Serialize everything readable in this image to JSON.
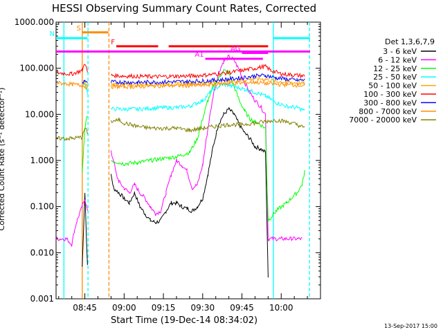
{
  "chart_data": {
    "type": "line",
    "title": "HESSI Observing Summary Count Rates, Corrected",
    "xlabel": "Start Time (19-Dec-14 08:34:02)",
    "ylabel": "Corrected Count Rate (s⁻¹ detector⁻¹)",
    "y_scale": "log",
    "ylim": [
      0.001,
      1000
    ],
    "y_ticks": [
      "1000.000",
      "100.000",
      "10.000",
      "1.000",
      "0.100",
      "0.010",
      "0.001"
    ],
    "x_ticks": [
      "08:45",
      "09:00",
      "09:15",
      "09:30",
      "09:45",
      "10:00"
    ],
    "x_tick_minutes": [
      525,
      540,
      555,
      570,
      585,
      600
    ],
    "xlim_minutes": [
      514,
      615
    ],
    "footer": "13-Sep-2017 15:00",
    "legend_title": "Det 1,3,6,7,9",
    "gap_minutes": [
      528,
      535
    ],
    "series": [
      {
        "name": "3 - 6 keV",
        "color": "#000000",
        "points": [
          [
            514,
            null
          ],
          [
            524,
            0.005
          ],
          [
            525,
            0.2
          ],
          [
            526,
            0.005
          ],
          [
            535,
            0.5
          ],
          [
            536,
            0.25
          ],
          [
            538,
            0.2
          ],
          [
            540,
            0.15
          ],
          [
            542,
            0.12
          ],
          [
            544,
            0.2
          ],
          [
            546,
            0.1
          ],
          [
            548,
            0.07
          ],
          [
            550,
            0.05
          ],
          [
            552,
            0.045
          ],
          [
            554,
            0.05
          ],
          [
            556,
            0.08
          ],
          [
            558,
            0.12
          ],
          [
            560,
            0.12
          ],
          [
            562,
            0.1
          ],
          [
            564,
            0.09
          ],
          [
            566,
            0.08
          ],
          [
            568,
            0.1
          ],
          [
            570,
            0.15
          ],
          [
            572,
            0.5
          ],
          [
            574,
            2
          ],
          [
            576,
            6
          ],
          [
            578,
            10
          ],
          [
            580,
            13
          ],
          [
            582,
            10
          ],
          [
            584,
            6
          ],
          [
            586,
            4
          ],
          [
            588,
            3
          ],
          [
            590,
            2
          ],
          [
            592,
            1.8
          ],
          [
            594,
            1.5
          ],
          [
            595,
            0.003
          ]
        ]
      },
      {
        "name": "6 - 12 keV",
        "color": "#ff00ff",
        "points": [
          [
            514,
            0.02
          ],
          [
            518,
            0.02
          ],
          [
            520,
            0.015
          ],
          [
            521,
            0.03
          ],
          [
            522,
            0.05
          ],
          [
            524,
            0.1
          ],
          [
            525,
            0.15
          ],
          [
            526,
            0.08
          ],
          [
            535,
            1.5
          ],
          [
            536,
            1
          ],
          [
            537,
            0.5
          ],
          [
            538,
            0.35
          ],
          [
            540,
            0.25
          ],
          [
            542,
            0.2
          ],
          [
            544,
            0.3
          ],
          [
            546,
            0.2
          ],
          [
            548,
            0.15
          ],
          [
            550,
            0.1
          ],
          [
            552,
            0.07
          ],
          [
            554,
            0.08
          ],
          [
            556,
            0.2
          ],
          [
            558,
            0.5
          ],
          [
            560,
            1
          ],
          [
            562,
            0.8
          ],
          [
            564,
            0.6
          ],
          [
            566,
            0.25
          ],
          [
            568,
            0.3
          ],
          [
            570,
            0.8
          ],
          [
            572,
            5
          ],
          [
            574,
            25
          ],
          [
            576,
            80
          ],
          [
            578,
            140
          ],
          [
            580,
            180
          ],
          [
            582,
            150
          ],
          [
            584,
            90
          ],
          [
            586,
            50
          ],
          [
            588,
            30
          ],
          [
            590,
            20
          ],
          [
            592,
            15
          ],
          [
            594,
            10
          ],
          [
            595,
            0.02
          ],
          [
            600,
            0.02
          ],
          [
            604,
            0.02
          ],
          [
            608,
            0.02
          ]
        ]
      },
      {
        "name": "12 - 25 keV",
        "color": "#00ff00",
        "points": [
          [
            514,
            null
          ],
          [
            524,
            0.5
          ],
          [
            525,
            5
          ],
          [
            526,
            10
          ],
          [
            535,
            1
          ],
          [
            538,
            0.9
          ],
          [
            540,
            0.85
          ],
          [
            545,
            0.9
          ],
          [
            550,
            1
          ],
          [
            555,
            1.1
          ],
          [
            560,
            1.2
          ],
          [
            565,
            1.5
          ],
          [
            568,
            3
          ],
          [
            570,
            8
          ],
          [
            572,
            20
          ],
          [
            574,
            40
          ],
          [
            576,
            60
          ],
          [
            578,
            90
          ],
          [
            580,
            80
          ],
          [
            582,
            40
          ],
          [
            584,
            20
          ],
          [
            586,
            12
          ],
          [
            588,
            8
          ],
          [
            590,
            7
          ],
          [
            592,
            6
          ],
          [
            594,
            5
          ],
          [
            595,
            0.05
          ],
          [
            598,
            0.08
          ],
          [
            602,
            0.12
          ],
          [
            606,
            0.2
          ],
          [
            608,
            0.3
          ],
          [
            609,
            0.6
          ]
        ]
      },
      {
        "name": "25 - 50 keV",
        "color": "#00ffff",
        "points": [
          [
            514,
            null
          ],
          [
            524,
            45
          ],
          [
            525,
            50
          ],
          [
            526,
            30
          ],
          [
            535,
            13
          ],
          [
            540,
            13
          ],
          [
            545,
            13
          ],
          [
            550,
            13.5
          ],
          [
            555,
            14
          ],
          [
            560,
            14
          ],
          [
            565,
            15
          ],
          [
            570,
            20
          ],
          [
            574,
            35
          ],
          [
            578,
            45
          ],
          [
            582,
            40
          ],
          [
            586,
            35
          ],
          [
            590,
            30
          ],
          [
            594,
            25
          ],
          [
            598,
            18
          ],
          [
            602,
            15
          ],
          [
            606,
            14
          ],
          [
            609,
            12
          ]
        ]
      },
      {
        "name": "50 - 100 keV",
        "color": "#ffa500",
        "points": [
          [
            514,
            null
          ],
          [
            524,
            42
          ],
          [
            525,
            48
          ],
          [
            526,
            40
          ],
          [
            535,
            45
          ],
          [
            540,
            44
          ],
          [
            545,
            44
          ],
          [
            550,
            45
          ],
          [
            555,
            45
          ],
          [
            560,
            46
          ],
          [
            565,
            46
          ],
          [
            570,
            47
          ],
          [
            575,
            50
          ],
          [
            580,
            52
          ],
          [
            585,
            55
          ],
          [
            590,
            60
          ],
          [
            594,
            58
          ],
          [
            598,
            52
          ],
          [
            602,
            50
          ],
          [
            606,
            48
          ],
          [
            609,
            46
          ]
        ]
      },
      {
        "name": "100 - 300 keV",
        "color": "#ff0000",
        "points": [
          [
            514,
            80
          ],
          [
            520,
            75
          ],
          [
            524,
            90
          ],
          [
            525,
            130
          ],
          [
            526,
            80
          ],
          [
            535,
            70
          ],
          [
            540,
            68
          ],
          [
            545,
            67
          ],
          [
            550,
            66
          ],
          [
            555,
            66
          ],
          [
            560,
            67
          ],
          [
            565,
            68
          ],
          [
            570,
            70
          ],
          [
            575,
            75
          ],
          [
            580,
            80
          ],
          [
            585,
            90
          ],
          [
            590,
            100
          ],
          [
            594,
            110
          ],
          [
            596,
            90
          ],
          [
            600,
            75
          ],
          [
            604,
            72
          ],
          [
            609,
            68
          ]
        ]
      },
      {
        "name": "300 - 800 keV",
        "color": "#0000ff",
        "points": [
          [
            514,
            null
          ],
          [
            524,
            48
          ],
          [
            525,
            55
          ],
          [
            526,
            45
          ],
          [
            535,
            50
          ],
          [
            540,
            50
          ],
          [
            545,
            49
          ],
          [
            550,
            50
          ],
          [
            555,
            50
          ],
          [
            560,
            51
          ],
          [
            565,
            52
          ],
          [
            570,
            53
          ],
          [
            575,
            55
          ],
          [
            580,
            58
          ],
          [
            585,
            62
          ],
          [
            590,
            68
          ],
          [
            594,
            70
          ],
          [
            598,
            62
          ],
          [
            602,
            58
          ],
          [
            606,
            55
          ],
          [
            609,
            55
          ]
        ]
      },
      {
        "name": "800 - 7000 keV",
        "color": "#ff8c00",
        "points": [
          [
            514,
            48
          ],
          [
            518,
            46
          ],
          [
            520,
            45
          ],
          [
            524,
            42
          ],
          [
            525,
            40
          ],
          [
            526,
            38
          ],
          [
            535,
            40
          ],
          [
            540,
            40
          ],
          [
            545,
            40
          ],
          [
            550,
            41
          ],
          [
            555,
            42
          ],
          [
            560,
            42
          ],
          [
            565,
            42
          ],
          [
            570,
            43
          ],
          [
            575,
            45
          ],
          [
            580,
            47
          ],
          [
            585,
            48
          ],
          [
            590,
            50
          ],
          [
            594,
            47
          ],
          [
            598,
            45
          ],
          [
            602,
            44
          ],
          [
            606,
            43
          ],
          [
            609,
            42
          ]
        ]
      },
      {
        "name": "7000 - 20000 keV",
        "color": "#808000",
        "points": [
          [
            514,
            3
          ],
          [
            518,
            3
          ],
          [
            520,
            3
          ],
          [
            524,
            3.2
          ],
          [
            525,
            5
          ],
          [
            526,
            4
          ],
          [
            535,
            7
          ],
          [
            538,
            7.5
          ],
          [
            540,
            6.5
          ],
          [
            545,
            5.5
          ],
          [
            550,
            5
          ],
          [
            555,
            5
          ],
          [
            560,
            5
          ],
          [
            565,
            4.5
          ],
          [
            570,
            5
          ],
          [
            575,
            5.5
          ],
          [
            580,
            6
          ],
          [
            585,
            6
          ],
          [
            590,
            6.5
          ],
          [
            594,
            7
          ],
          [
            598,
            7.5
          ],
          [
            602,
            7
          ],
          [
            606,
            6
          ],
          [
            609,
            5
          ]
        ]
      }
    ],
    "vertical_markers": [
      {
        "minute": 517.0,
        "color": "#00ffff",
        "style": "solid"
      },
      {
        "minute": 524.0,
        "color": "#ff8c00",
        "style": "solid"
      },
      {
        "minute": 526.2,
        "color": "#00ffff",
        "style": "dashed"
      },
      {
        "minute": 534.2,
        "color": "#ff8c00",
        "style": "dashed"
      },
      {
        "minute": 597.0,
        "color": "#00ffff",
        "style": "solid"
      },
      {
        "minute": 610.8,
        "color": "#00ffff",
        "style": "dashed"
      }
    ],
    "flag_bars": [
      {
        "label": "S",
        "color": "#ff8c00",
        "x0": 524,
        "x1": 534,
        "yval": 600
      },
      {
        "label": "N",
        "color": "#00ffff",
        "x0": 514,
        "x1": 526,
        "yval": 450
      },
      {
        "label": "",
        "color": "#00ffff",
        "x0": 597,
        "x1": 611,
        "yval": 450
      },
      {
        "label": "F",
        "color": "#ff0000",
        "x0": 537,
        "x1": 553,
        "yval": 300
      },
      {
        "label": "",
        "color": "#ff0000",
        "x0": 557,
        "x1": 595,
        "yval": 300
      },
      {
        "label": "",
        "color": "#ff00ff",
        "x0": 514,
        "x1": 611,
        "yval": 230
      },
      {
        "label": "AG",
        "color": "#ff00ff",
        "x0": 585,
        "x1": 595,
        "yval": 215
      },
      {
        "label": "A1",
        "color": "#ff00ff",
        "x0": 571,
        "x1": 593,
        "yval": 160
      }
    ]
  }
}
